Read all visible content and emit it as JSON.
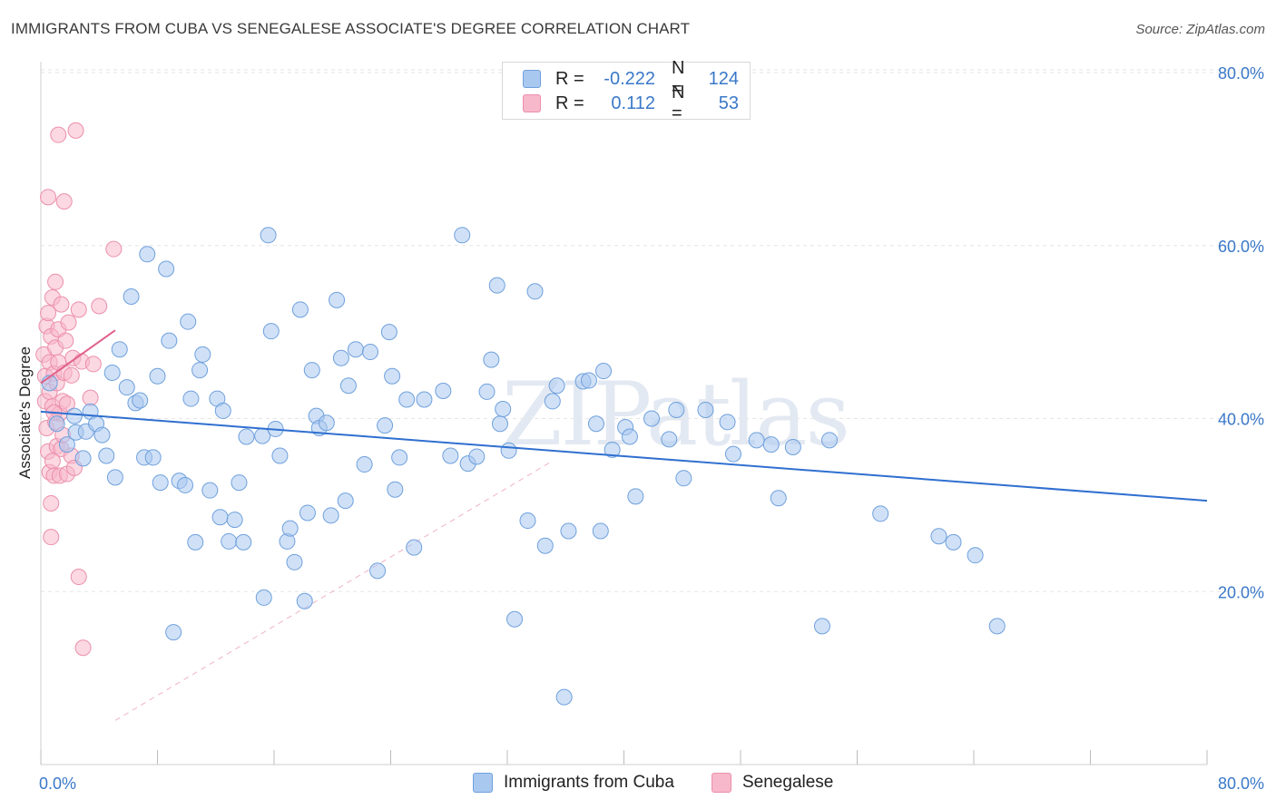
{
  "title": "IMMIGRANTS FROM CUBA VS SENEGALESE ASSOCIATE'S DEGREE CORRELATION CHART",
  "source": "Source: ZipAtlas.com",
  "watermark": "ZIPatlas",
  "legend": {
    "rows": [
      {
        "r_label": "R =",
        "r_value": "-0.222",
        "n_label": "N =",
        "n_value": "124",
        "color": "#a9c8f0"
      },
      {
        "r_label": "R =",
        "r_value": "0.112",
        "n_label": "N =",
        "n_value": "53",
        "color": "#f7b8cb"
      }
    ],
    "bottom": [
      {
        "label": "Immigrants from Cuba",
        "color": "#a9c8f0"
      },
      {
        "label": "Senegalese",
        "color": "#f7b8cb"
      }
    ]
  },
  "colors": {
    "cuba_fill": "#a9c8f0",
    "cuba_stroke": "#6fa0dc",
    "cuba_line": "#2f6fd0",
    "sen_fill": "#f7b8cb",
    "sen_stroke": "#ec8fac",
    "sen_line": "#e0608a",
    "axis_text": "#3a78c8",
    "grid": "#e6e6e6"
  },
  "chart_data": {
    "type": "scatter",
    "title": "IMMIGRANTS FROM CUBA VS SENEGALESE ASSOCIATE'S DEGREE CORRELATION CHART",
    "xlabel": "",
    "ylabel": "Associate's Degree",
    "xlim": [
      0,
      80
    ],
    "ylim": [
      0,
      80
    ],
    "x_tick_labels": [
      "0.0%",
      "80.0%"
    ],
    "y_ticks": [
      20,
      40,
      60,
      80
    ],
    "y_tick_labels": [
      "20.0%",
      "40.0%",
      "60.0%",
      "80.0%"
    ],
    "grid": true,
    "legend_position": "top-center",
    "series": [
      {
        "name": "Immigrants from Cuba",
        "r": -0.222,
        "n": 124,
        "trend": {
          "x": [
            0,
            80
          ],
          "y": [
            40.8,
            30.5
          ]
        },
        "points": [
          [
            0.6,
            44.1
          ],
          [
            1.1,
            39.4
          ],
          [
            1.8,
            37.0
          ],
          [
            2.3,
            40.3
          ],
          [
            2.4,
            38.4
          ],
          [
            2.9,
            35.4
          ],
          [
            3.1,
            38.5
          ],
          [
            3.4,
            40.8
          ],
          [
            3.8,
            39.4
          ],
          [
            4.2,
            38.1
          ],
          [
            4.5,
            35.7
          ],
          [
            4.9,
            45.3
          ],
          [
            5.1,
            33.2
          ],
          [
            5.4,
            48.0
          ],
          [
            5.9,
            43.6
          ],
          [
            6.2,
            54.1
          ],
          [
            6.5,
            41.8
          ],
          [
            6.8,
            42.1
          ],
          [
            7.1,
            35.5
          ],
          [
            7.3,
            59.0
          ],
          [
            7.7,
            35.5
          ],
          [
            8.0,
            44.9
          ],
          [
            8.2,
            32.6
          ],
          [
            8.6,
            57.3
          ],
          [
            8.8,
            49.0
          ],
          [
            9.1,
            15.3
          ],
          [
            9.5,
            32.8
          ],
          [
            9.9,
            32.3
          ],
          [
            10.1,
            51.2
          ],
          [
            10.3,
            42.3
          ],
          [
            10.6,
            25.7
          ],
          [
            10.9,
            45.6
          ],
          [
            11.1,
            47.4
          ],
          [
            11.6,
            31.7
          ],
          [
            12.1,
            42.3
          ],
          [
            12.3,
            28.6
          ],
          [
            12.5,
            40.9
          ],
          [
            12.9,
            25.8
          ],
          [
            13.3,
            28.3
          ],
          [
            13.6,
            32.6
          ],
          [
            13.9,
            25.7
          ],
          [
            14.1,
            37.9
          ],
          [
            15.2,
            38.0
          ],
          [
            15.3,
            19.3
          ],
          [
            15.6,
            61.2
          ],
          [
            15.8,
            50.1
          ],
          [
            16.1,
            38.8
          ],
          [
            16.4,
            35.7
          ],
          [
            16.9,
            25.8
          ],
          [
            17.1,
            27.3
          ],
          [
            17.4,
            23.4
          ],
          [
            17.8,
            52.6
          ],
          [
            18.1,
            18.9
          ],
          [
            18.3,
            29.1
          ],
          [
            18.6,
            45.6
          ],
          [
            18.9,
            40.3
          ],
          [
            19.1,
            38.9
          ],
          [
            19.6,
            39.5
          ],
          [
            19.9,
            28.8
          ],
          [
            20.3,
            53.7
          ],
          [
            20.6,
            47.0
          ],
          [
            20.9,
            30.5
          ],
          [
            21.1,
            43.8
          ],
          [
            21.6,
            48.0
          ],
          [
            22.2,
            34.7
          ],
          [
            22.6,
            47.7
          ],
          [
            23.1,
            22.4
          ],
          [
            23.6,
            39.2
          ],
          [
            23.9,
            50.0
          ],
          [
            24.1,
            44.9
          ],
          [
            24.3,
            31.8
          ],
          [
            24.6,
            35.5
          ],
          [
            25.1,
            42.2
          ],
          [
            25.6,
            25.1
          ],
          [
            26.3,
            42.2
          ],
          [
            27.6,
            43.2
          ],
          [
            28.1,
            35.7
          ],
          [
            28.9,
            61.2
          ],
          [
            29.3,
            34.8
          ],
          [
            29.9,
            35.6
          ],
          [
            30.6,
            43.1
          ],
          [
            30.9,
            46.8
          ],
          [
            31.3,
            55.4
          ],
          [
            31.5,
            39.4
          ],
          [
            31.7,
            41.1
          ],
          [
            32.1,
            36.3
          ],
          [
            32.5,
            16.8
          ],
          [
            33.4,
            28.2
          ],
          [
            33.9,
            54.7
          ],
          [
            34.6,
            25.3
          ],
          [
            35.1,
            42.0
          ],
          [
            35.4,
            43.8
          ],
          [
            35.9,
            7.8
          ],
          [
            36.2,
            27.0
          ],
          [
            37.2,
            44.3
          ],
          [
            37.6,
            44.4
          ],
          [
            38.1,
            39.4
          ],
          [
            38.4,
            27.0
          ],
          [
            38.6,
            45.5
          ],
          [
            39.2,
            36.4
          ],
          [
            40.1,
            39.0
          ],
          [
            40.4,
            37.9
          ],
          [
            40.8,
            31.0
          ],
          [
            41.9,
            40.0
          ],
          [
            43.1,
            37.6
          ],
          [
            43.6,
            41.0
          ],
          [
            44.1,
            33.1
          ],
          [
            45.6,
            41.0
          ],
          [
            47.1,
            39.6
          ],
          [
            47.5,
            35.9
          ],
          [
            49.1,
            37.5
          ],
          [
            50.1,
            37.0
          ],
          [
            50.6,
            30.8
          ],
          [
            51.6,
            36.7
          ],
          [
            53.6,
            16.0
          ],
          [
            54.1,
            37.5
          ],
          [
            57.6,
            29.0
          ],
          [
            61.6,
            26.4
          ],
          [
            62.6,
            25.7
          ],
          [
            64.1,
            24.2
          ],
          [
            65.6,
            16.0
          ]
        ]
      },
      {
        "name": "Senegalese",
        "r": 0.112,
        "n": 53,
        "trend": {
          "x": [
            0,
            5.1
          ],
          "y": [
            44.1,
            50.2
          ]
        },
        "points": [
          [
            0.2,
            47.4
          ],
          [
            0.3,
            44.9
          ],
          [
            0.3,
            42.0
          ],
          [
            0.4,
            50.7
          ],
          [
            0.4,
            38.9
          ],
          [
            0.5,
            65.6
          ],
          [
            0.5,
            52.2
          ],
          [
            0.5,
            36.2
          ],
          [
            0.6,
            33.8
          ],
          [
            0.6,
            46.5
          ],
          [
            0.6,
            43.1
          ],
          [
            0.7,
            49.5
          ],
          [
            0.7,
            30.2
          ],
          [
            0.7,
            26.3
          ],
          [
            0.8,
            35.1
          ],
          [
            0.8,
            41.4
          ],
          [
            0.8,
            54.0
          ],
          [
            0.9,
            33.4
          ],
          [
            0.9,
            45.2
          ],
          [
            1.0,
            48.2
          ],
          [
            1.0,
            55.8
          ],
          [
            1.0,
            39.6
          ],
          [
            1.1,
            36.8
          ],
          [
            1.1,
            44.1
          ],
          [
            1.2,
            72.8
          ],
          [
            1.2,
            50.3
          ],
          [
            1.2,
            46.5
          ],
          [
            1.3,
            33.4
          ],
          [
            1.3,
            40.6
          ],
          [
            1.4,
            53.2
          ],
          [
            1.4,
            36.5
          ],
          [
            1.5,
            42.0
          ],
          [
            1.5,
            38.1
          ],
          [
            1.6,
            45.3
          ],
          [
            1.6,
            65.1
          ],
          [
            1.7,
            49.0
          ],
          [
            1.8,
            33.6
          ],
          [
            1.8,
            41.7
          ],
          [
            1.9,
            51.1
          ],
          [
            2.1,
            45.0
          ],
          [
            2.1,
            35.7
          ],
          [
            2.2,
            47.0
          ],
          [
            2.3,
            34.3
          ],
          [
            2.4,
            73.3
          ],
          [
            2.6,
            21.7
          ],
          [
            2.6,
            52.6
          ],
          [
            2.8,
            46.6
          ],
          [
            2.9,
            13.5
          ],
          [
            3.4,
            42.4
          ],
          [
            3.6,
            46.3
          ],
          [
            4.0,
            53.0
          ],
          [
            5.0,
            59.6
          ],
          [
            0.9,
            40.7
          ]
        ]
      }
    ]
  }
}
